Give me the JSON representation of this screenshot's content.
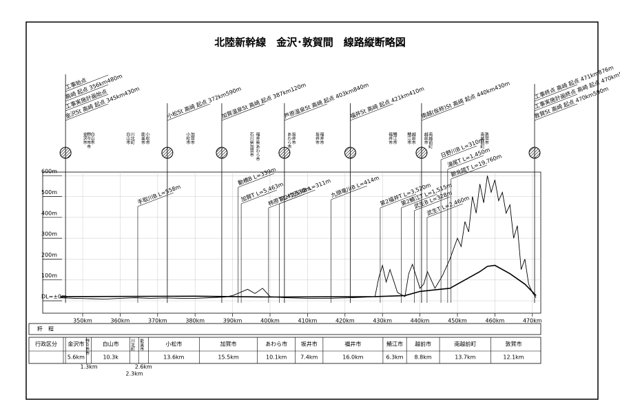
{
  "title": "北陸新幹線　金沢･敦賀間　線路縦断略図",
  "yticks": [
    {
      "value": 0,
      "label": "DL=±0m"
    },
    {
      "value": 100,
      "label": "100m"
    },
    {
      "value": 200,
      "label": "200m"
    },
    {
      "value": 300,
      "label": "300m"
    },
    {
      "value": 400,
      "label": "400m"
    },
    {
      "value": 500,
      "label": "500m"
    },
    {
      "value": 600,
      "label": "600m"
    }
  ],
  "xticks": [
    {
      "value": 350,
      "label": "350km"
    },
    {
      "value": 360,
      "label": "360km"
    },
    {
      "value": 370,
      "label": "370km"
    },
    {
      "value": 380,
      "label": "380km"
    },
    {
      "value": 390,
      "label": "390km"
    },
    {
      "value": 400,
      "label": "400km"
    },
    {
      "value": 410,
      "label": "410km"
    },
    {
      "value": 420,
      "label": "420km"
    },
    {
      "value": 430,
      "label": "430km"
    },
    {
      "value": 440,
      "label": "440km"
    },
    {
      "value": 450,
      "label": "450km"
    },
    {
      "value": 460,
      "label": "460km"
    },
    {
      "value": 470,
      "label": "470km"
    }
  ],
  "stations": [
    {
      "km": 345.43,
      "labels": [
        "工事始点",
        "高崎 起点 356km480m",
        "工事実施計画始点",
        "金沢St 高崎 起点 345km430m"
      ]
    },
    {
      "km": 372.59,
      "labels": [
        "小松St 高崎 起点 372km590m"
      ]
    },
    {
      "km": 387.12,
      "labels": [
        "加賀温泉St 高崎 起点 387km120m"
      ]
    },
    {
      "km": 403.84,
      "labels": [
        "芦原温泉St 高崎 起点 403km840m"
      ]
    },
    {
      "km": 421.41,
      "labels": [
        "福井St 高崎 起点 421km410m"
      ]
    },
    {
      "km": 440.43,
      "labels": [
        "南越(仮称)St 高崎 起点 440km430m"
      ]
    },
    {
      "km": 470.59,
      "labels": [
        "工事終点 高崎 起点 471km876m",
        "工事実施計画終点 高崎 起点 470km590m",
        "敦賀St 高崎 起点 470km590m"
      ]
    }
  ],
  "structures": [
    {
      "label": "手取川B L=558m",
      "km": 364.7
    },
    {
      "label": "動橋B L=339m",
      "km": 391.5
    },
    {
      "label": "加賀T L=5,463m",
      "km": 392.3
    },
    {
      "label": "柿原T L=2,530m",
      "km": 399.6
    },
    {
      "label": "第2竹田川B L=311m",
      "km": 402.5
    },
    {
      "label": "九頭竜川B L=414m",
      "km": 416.3
    },
    {
      "label": "第2福井T L=3,520m",
      "km": 429.4
    },
    {
      "label": "第2鯖江T L=1,515m",
      "km": 435
    },
    {
      "label": "武生B L=328m",
      "km": 438.5
    },
    {
      "label": "武生T L=2,460m",
      "km": 441.9
    },
    {
      "label": "日野川B L=310m",
      "km": 445.6
    },
    {
      "label": "湯尾T L=1,450m",
      "km": 447.4
    },
    {
      "label": "新北陸T L=19,760m",
      "km": 448.3
    }
  ],
  "towns": [
    {
      "text": "金沢市",
      "km": 350.5
    },
    {
      "text": "野々市市",
      "km": 351.5
    },
    {
      "text": "白山市",
      "km": 352.5
    },
    {
      "text": "白山市",
      "km": 362
    },
    {
      "text": "川北町",
      "km": 363.2
    },
    {
      "text": "能美市",
      "km": 366
    },
    {
      "text": "小松市",
      "km": 367.2
    },
    {
      "text": "小松市",
      "km": 378
    },
    {
      "text": "加賀市",
      "km": 379.2
    },
    {
      "text": "石川県加賀市",
      "km": 395
    },
    {
      "text": "福井県あわら市",
      "km": 396.6
    },
    {
      "text": "あわら市",
      "km": 405
    },
    {
      "text": "坂井市",
      "km": 406.2
    },
    {
      "text": "坂井市",
      "km": 412.5
    },
    {
      "text": "福井市",
      "km": 413.7
    },
    {
      "text": "福井市",
      "km": 432
    },
    {
      "text": "鯖江市",
      "km": 433.2
    },
    {
      "text": "鯖江市",
      "km": 437
    },
    {
      "text": "越前市",
      "km": 438.2
    },
    {
      "text": "越前市",
      "km": 441.5
    },
    {
      "text": "南越前町",
      "km": 442.7
    },
    {
      "text": "南越前町",
      "km": 456.5
    },
    {
      "text": "敦賀市",
      "km": 457.7
    }
  ],
  "ground": {
    "km": [
      344,
      348,
      352,
      356,
      360,
      364,
      368,
      372,
      376,
      380,
      384,
      388,
      390,
      392,
      394,
      396,
      398,
      400,
      404,
      410,
      416,
      422,
      426,
      428,
      429,
      430,
      431,
      432,
      434,
      436,
      437,
      438,
      440,
      441,
      442,
      443,
      444,
      446,
      448,
      450,
      451,
      452,
      453,
      454,
      455,
      456,
      457,
      458,
      459,
      460,
      461,
      462,
      463,
      464,
      465,
      466,
      467,
      468,
      469,
      470,
      471
    ],
    "elevation": [
      15,
      12,
      10,
      8,
      12,
      15,
      12,
      14,
      12,
      12,
      15,
      18,
      25,
      40,
      55,
      35,
      60,
      20,
      15,
      12,
      12,
      15,
      18,
      20,
      110,
      170,
      90,
      150,
      40,
      20,
      130,
      175,
      60,
      80,
      140,
      100,
      60,
      120,
      200,
      300,
      260,
      380,
      330,
      500,
      420,
      560,
      470,
      600,
      520,
      580,
      480,
      520,
      420,
      460,
      300,
      360,
      150,
      200,
      80,
      40,
      15
    ]
  },
  "track": {
    "km": [
      344,
      380,
      400,
      428,
      436,
      440,
      448,
      452,
      456,
      458,
      460,
      464,
      468,
      471
    ],
    "elevation": [
      20,
      22,
      18,
      20,
      25,
      45,
      60,
      100,
      140,
      165,
      170,
      130,
      80,
      25
    ]
  },
  "kilometrage_label": "粁　程",
  "admin_label": "行政区分",
  "municipalities": [
    {
      "name": "金沢市",
      "length": "5.6km"
    },
    {
      "name": "野々市市",
      "length": "1.3km"
    },
    {
      "name": "白山市",
      "length": "10.3k"
    },
    {
      "name": "川北町",
      "length": "2.3km"
    },
    {
      "name": "能美市",
      "length": "2.6km"
    },
    {
      "name": "小松市",
      "length": "13.6km"
    },
    {
      "name": "加賀市",
      "length": "15.5km"
    },
    {
      "name": "あわら市",
      "length": "10.1km"
    },
    {
      "name": "坂井市",
      "length": "7.4km"
    },
    {
      "name": "福井市",
      "length": "16.0km"
    },
    {
      "name": "鯖江市",
      "length": "6.3km"
    },
    {
      "name": "越前市",
      "length": "8.8km"
    },
    {
      "name": "南越前町",
      "length": "13.7km"
    },
    {
      "name": "敦賀市",
      "length": "12.1km"
    }
  ]
}
